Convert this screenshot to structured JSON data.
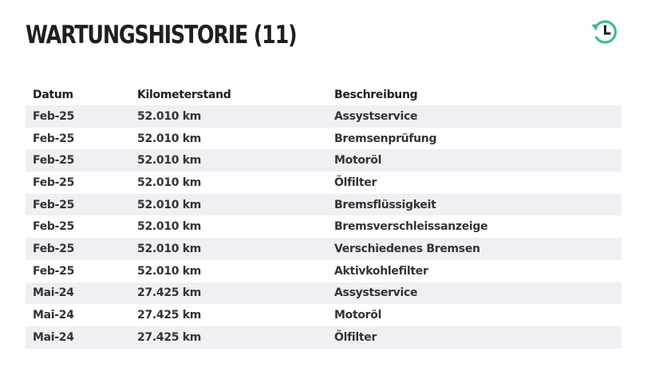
{
  "header": {
    "title": "WARTUNGSHISTORIE (11)",
    "history_icon": "history-clock-icon",
    "accent_color": "#3dbd8c"
  },
  "table": {
    "columns": [
      "Datum",
      "Kilometerstand",
      "Beschreibung"
    ],
    "rows": [
      [
        "Feb-25",
        "52.010 km",
        "Assystservice"
      ],
      [
        "Feb-25",
        "52.010 km",
        "Bremsenprüfung"
      ],
      [
        "Feb-25",
        "52.010 km",
        "Motoröl"
      ],
      [
        "Feb-25",
        "52.010 km",
        "Ölfilter"
      ],
      [
        "Feb-25",
        "52.010 km",
        "Bremsflüssigkeit"
      ],
      [
        "Feb-25",
        "52.010 km",
        "Bremsverschleissanzeige"
      ],
      [
        "Feb-25",
        "52.010 km",
        "Verschiedenes Bremsen"
      ],
      [
        "Feb-25",
        "52.010 km",
        "Aktivkohlefilter"
      ],
      [
        "Mai-24",
        "27.425 km",
        "Assystservice"
      ],
      [
        "Mai-24",
        "27.425 km",
        "Motoröl"
      ],
      [
        "Mai-24",
        "27.425 km",
        "Ölfilter"
      ]
    ]
  }
}
